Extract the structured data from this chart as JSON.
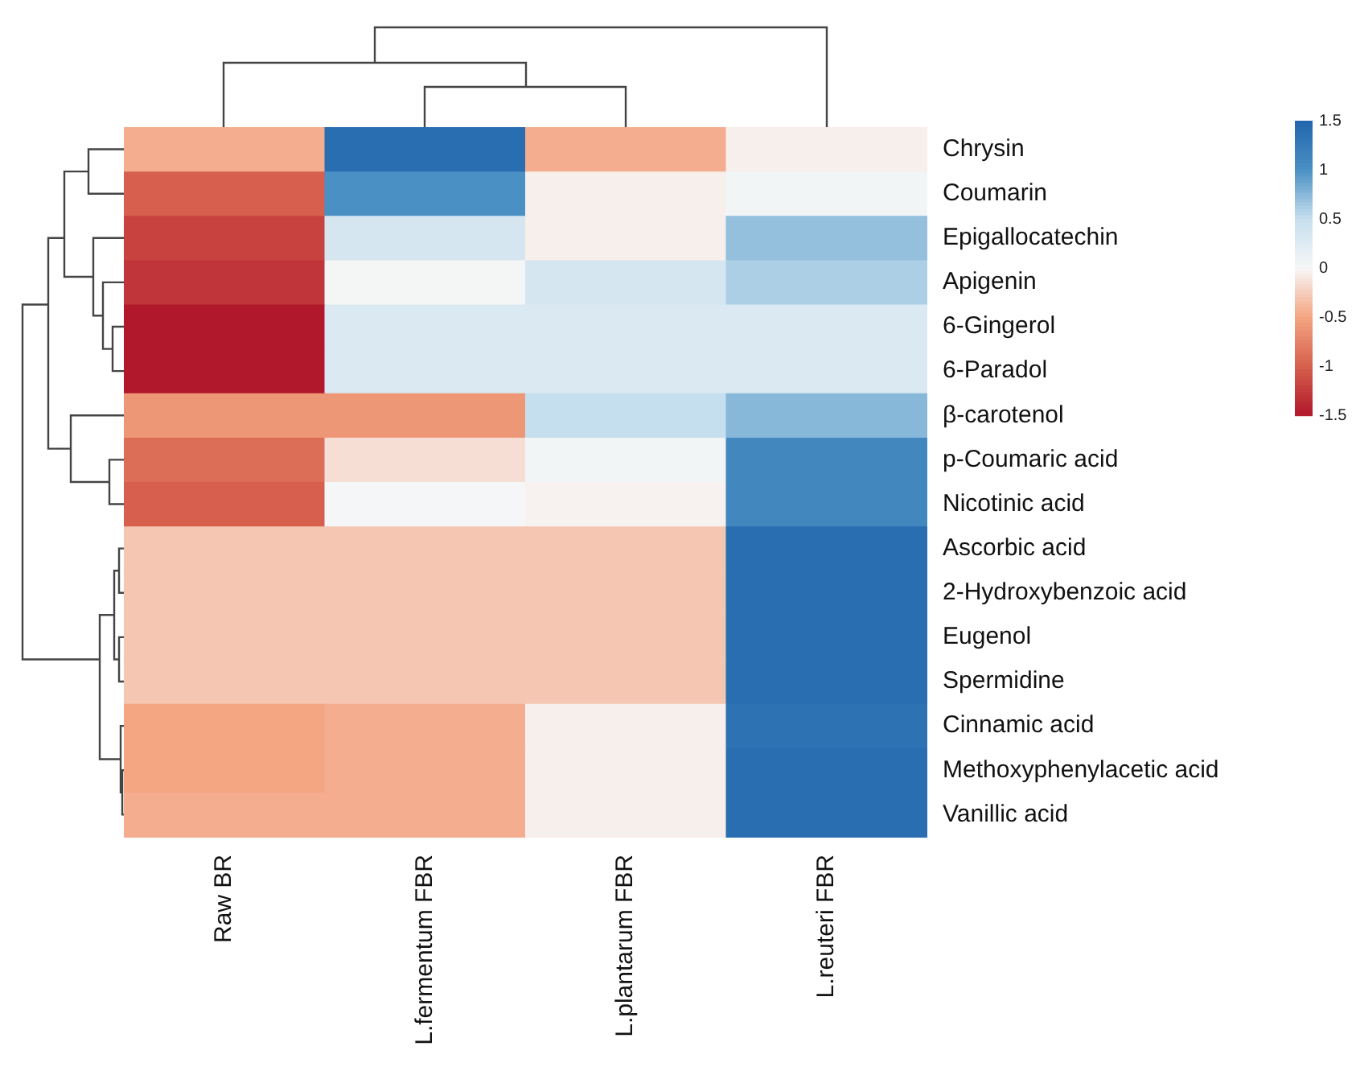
{
  "chart_data": {
    "type": "heatmap",
    "categories": [
      "Raw BR",
      "L.fermentum FBR",
      "L.plantarum FBR",
      "L.reuteri FBR"
    ],
    "y_categories": [
      "Chrysin",
      "Coumarin",
      "Epigallocatechin",
      "Apigenin",
      "6-Gingerol",
      "6-Paradol",
      "β-carotenol",
      "p-Coumaric acid",
      "Nicotinic acid",
      "Ascorbic acid",
      "2-Hydroxybenzoic acid",
      "Eugenol",
      "Spermidine",
      "Cinnamic acid",
      "Methoxyphenylacetic acid",
      "Vanillic acid"
    ],
    "cells": [
      [
        -0.45,
        1.4,
        -0.45,
        -0.05
      ],
      [
        -1.0,
        1.0,
        -0.05,
        0.05
      ],
      [
        -1.2,
        0.35,
        -0.05,
        0.7
      ],
      [
        -1.3,
        0.03,
        0.35,
        0.6
      ],
      [
        -1.5,
        0.3,
        0.3,
        0.3
      ],
      [
        -1.5,
        0.3,
        0.3,
        0.3
      ],
      [
        -0.6,
        -0.6,
        0.5,
        0.75
      ],
      [
        -0.9,
        -0.15,
        0.05,
        1.1
      ],
      [
        -1.0,
        0.02,
        -0.03,
        1.1
      ],
      [
        -0.3,
        -0.3,
        -0.3,
        1.4
      ],
      [
        -0.3,
        -0.3,
        -0.3,
        1.4
      ],
      [
        -0.3,
        -0.3,
        -0.3,
        1.4
      ],
      [
        -0.3,
        -0.3,
        -0.3,
        1.4
      ],
      [
        -0.5,
        -0.45,
        -0.05,
        1.35
      ],
      [
        -0.5,
        -0.45,
        -0.05,
        1.4
      ],
      [
        -0.45,
        -0.45,
        -0.05,
        1.4
      ]
    ],
    "clim": [
      -1.5,
      1.5
    ],
    "cticks": [
      1.5,
      1,
      0.5,
      0,
      -0.5,
      -1,
      -1.5
    ]
  }
}
